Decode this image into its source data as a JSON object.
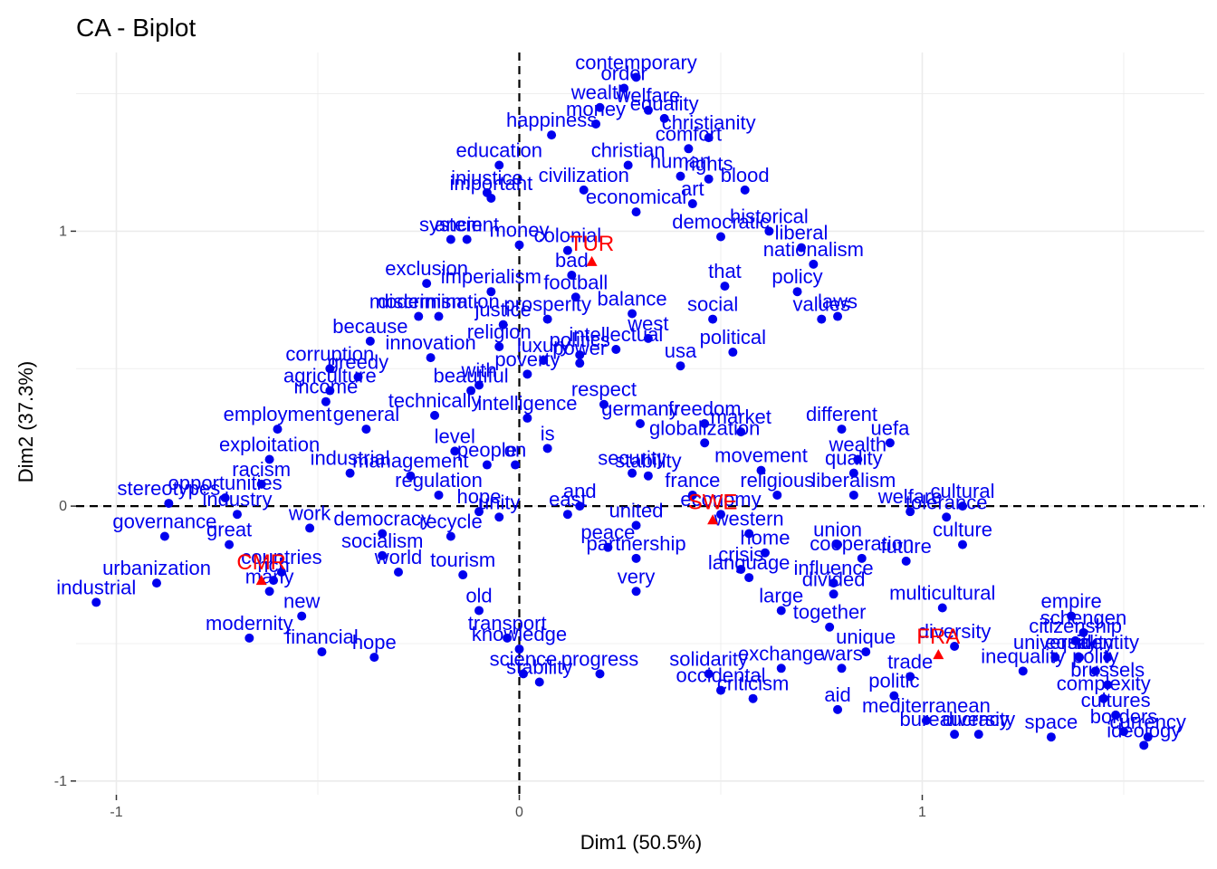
{
  "chart_data": {
    "type": "scatter",
    "title": "CA - Biplot",
    "xlabel": "Dim1 (50.5%)",
    "ylabel": "Dim2 (37.3%)",
    "xlim": [
      -1.1,
      1.7
    ],
    "ylim": [
      -1.05,
      1.65
    ],
    "x_ticks": [
      -1,
      0,
      1
    ],
    "y_ticks": [
      -1,
      0,
      1
    ],
    "grid": true,
    "reference_lines": {
      "x": 0,
      "y": 0,
      "style": "dashed"
    },
    "colors": {
      "rows": "#0000ee",
      "columns": "#ff0000",
      "grid": "#ebebeb"
    },
    "series": [
      {
        "role": "rows",
        "marker": "circle",
        "points": [
          {
            "label": "contemporary",
            "x": 0.29,
            "y": 1.56
          },
          {
            "label": "order",
            "x": 0.26,
            "y": 1.52
          },
          {
            "label": "welfare",
            "x": 0.32,
            "y": 1.44
          },
          {
            "label": "wealth",
            "x": 0.2,
            "y": 1.45
          },
          {
            "label": "equality",
            "x": 0.36,
            "y": 1.41
          },
          {
            "label": "money",
            "x": 0.19,
            "y": 1.39
          },
          {
            "label": "happiness",
            "x": 0.08,
            "y": 1.35
          },
          {
            "label": "christianity",
            "x": 0.47,
            "y": 1.34
          },
          {
            "label": "comfort",
            "x": 0.42,
            "y": 1.3
          },
          {
            "label": "christian",
            "x": 0.27,
            "y": 1.24
          },
          {
            "label": "human",
            "x": 0.4,
            "y": 1.2
          },
          {
            "label": "rights",
            "x": 0.47,
            "y": 1.19
          },
          {
            "label": "blood",
            "x": 0.56,
            "y": 1.15
          },
          {
            "label": "education",
            "x": -0.05,
            "y": 1.24
          },
          {
            "label": "civilization",
            "x": 0.16,
            "y": 1.15
          },
          {
            "label": "injustice",
            "x": -0.08,
            "y": 1.14
          },
          {
            "label": "important",
            "x": -0.07,
            "y": 1.12
          },
          {
            "label": "economical",
            "x": 0.29,
            "y": 1.07
          },
          {
            "label": "art",
            "x": 0.43,
            "y": 1.1
          },
          {
            "label": "historical",
            "x": 0.62,
            "y": 1.0
          },
          {
            "label": "democratic",
            "x": 0.5,
            "y": 0.98
          },
          {
            "label": "liberal",
            "x": 0.7,
            "y": 0.94
          },
          {
            "label": "nationalism",
            "x": 0.73,
            "y": 0.88
          },
          {
            "label": "system",
            "x": -0.17,
            "y": 0.97
          },
          {
            "label": "ancient",
            "x": -0.13,
            "y": 0.97
          },
          {
            "label": "money",
            "x": 0.0,
            "y": 0.95
          },
          {
            "label": "colonial",
            "x": 0.12,
            "y": 0.93
          },
          {
            "label": "bad",
            "x": 0.13,
            "y": 0.84
          },
          {
            "label": "exclusion",
            "x": -0.23,
            "y": 0.81
          },
          {
            "label": "imperialism",
            "x": -0.07,
            "y": 0.78
          },
          {
            "label": "football",
            "x": 0.14,
            "y": 0.76
          },
          {
            "label": "that",
            "x": 0.51,
            "y": 0.8
          },
          {
            "label": "policy",
            "x": 0.69,
            "y": 0.78
          },
          {
            "label": "balance",
            "x": 0.28,
            "y": 0.7
          },
          {
            "label": "discrimination",
            "x": -0.2,
            "y": 0.69
          },
          {
            "label": "modernism",
            "x": -0.25,
            "y": 0.69
          },
          {
            "label": "prosperity",
            "x": 0.07,
            "y": 0.68
          },
          {
            "label": "justice",
            "x": -0.04,
            "y": 0.66
          },
          {
            "label": "social",
            "x": 0.48,
            "y": 0.68
          },
          {
            "label": "values",
            "x": 0.75,
            "y": 0.68
          },
          {
            "label": "laws",
            "x": 0.79,
            "y": 0.69
          },
          {
            "label": "because",
            "x": -0.37,
            "y": 0.6
          },
          {
            "label": "religion",
            "x": -0.05,
            "y": 0.58
          },
          {
            "label": "west",
            "x": 0.32,
            "y": 0.61
          },
          {
            "label": "intellectual",
            "x": 0.24,
            "y": 0.57
          },
          {
            "label": "political",
            "x": 0.53,
            "y": 0.56
          },
          {
            "label": "innovation",
            "x": -0.22,
            "y": 0.54
          },
          {
            "label": "politics",
            "x": 0.15,
            "y": 0.55
          },
          {
            "label": "power",
            "x": 0.15,
            "y": 0.52
          },
          {
            "label": "luxury",
            "x": 0.06,
            "y": 0.53
          },
          {
            "label": "usa",
            "x": 0.4,
            "y": 0.51
          },
          {
            "label": "poverty",
            "x": 0.02,
            "y": 0.48
          },
          {
            "label": "corruption",
            "x": -0.47,
            "y": 0.5
          },
          {
            "label": "greedy",
            "x": -0.4,
            "y": 0.47
          },
          {
            "label": "agriculture",
            "x": -0.47,
            "y": 0.42
          },
          {
            "label": "beautiful",
            "x": -0.12,
            "y": 0.42
          },
          {
            "label": "with",
            "x": -0.1,
            "y": 0.44
          },
          {
            "label": "income",
            "x": -0.48,
            "y": 0.38
          },
          {
            "label": "technically",
            "x": -0.21,
            "y": 0.33
          },
          {
            "label": "intelligence",
            "x": 0.02,
            "y": 0.32
          },
          {
            "label": "respect",
            "x": 0.21,
            "y": 0.37
          },
          {
            "label": "germany",
            "x": 0.3,
            "y": 0.3
          },
          {
            "label": "freedom",
            "x": 0.46,
            "y": 0.3
          },
          {
            "label": "market",
            "x": 0.55,
            "y": 0.27
          },
          {
            "label": "globalization",
            "x": 0.46,
            "y": 0.23
          },
          {
            "label": "different",
            "x": 0.8,
            "y": 0.28
          },
          {
            "label": "uefa",
            "x": 0.92,
            "y": 0.23
          },
          {
            "label": "employment",
            "x": -0.6,
            "y": 0.28
          },
          {
            "label": "general",
            "x": -0.38,
            "y": 0.28
          },
          {
            "label": "level",
            "x": -0.16,
            "y": 0.2
          },
          {
            "label": "people",
            "x": -0.08,
            "y": 0.15
          },
          {
            "label": "on",
            "x": -0.01,
            "y": 0.15
          },
          {
            "label": "is",
            "x": 0.07,
            "y": 0.21
          },
          {
            "label": "exploitation",
            "x": -0.62,
            "y": 0.17
          },
          {
            "label": "industrial",
            "x": -0.42,
            "y": 0.12
          },
          {
            "label": "management",
            "x": -0.27,
            "y": 0.11
          },
          {
            "label": "wealth",
            "x": 0.84,
            "y": 0.17
          },
          {
            "label": "movement",
            "x": 0.6,
            "y": 0.13
          },
          {
            "label": "quality",
            "x": 0.83,
            "y": 0.12
          },
          {
            "label": "security",
            "x": 0.28,
            "y": 0.12
          },
          {
            "label": "stability",
            "x": 0.32,
            "y": 0.11
          },
          {
            "label": "racism",
            "x": -0.64,
            "y": 0.08
          },
          {
            "label": "regulation",
            "x": -0.2,
            "y": 0.04
          },
          {
            "label": "religious",
            "x": 0.64,
            "y": 0.04
          },
          {
            "label": "liberalism",
            "x": 0.83,
            "y": 0.04
          },
          {
            "label": "cultural",
            "x": 1.1,
            "y": 0.0
          },
          {
            "label": "france",
            "x": 0.43,
            "y": 0.04
          },
          {
            "label": "opportunities",
            "x": -0.73,
            "y": 0.03
          },
          {
            "label": "stereotypes",
            "x": -0.87,
            "y": 0.01
          },
          {
            "label": "and",
            "x": 0.15,
            "y": 0.0
          },
          {
            "label": "east",
            "x": 0.12,
            "y": -0.03
          },
          {
            "label": "tolerance",
            "x": 1.06,
            "y": -0.04
          },
          {
            "label": "welfare",
            "x": 0.97,
            "y": -0.02
          },
          {
            "label": "hope",
            "x": -0.1,
            "y": -0.02
          },
          {
            "label": "unity",
            "x": -0.05,
            "y": -0.04
          },
          {
            "label": "economy",
            "x": 0.5,
            "y": -0.03
          },
          {
            "label": "united",
            "x": 0.29,
            "y": -0.07
          },
          {
            "label": "western",
            "x": 0.57,
            "y": -0.1
          },
          {
            "label": "culture",
            "x": 1.1,
            "y": -0.14
          },
          {
            "label": "industry",
            "x": -0.7,
            "y": -0.03
          },
          {
            "label": "work",
            "x": -0.52,
            "y": -0.08
          },
          {
            "label": "democracy",
            "x": -0.34,
            "y": -0.1
          },
          {
            "label": "recycle",
            "x": -0.17,
            "y": -0.11
          },
          {
            "label": "governance",
            "x": -0.88,
            "y": -0.11
          },
          {
            "label": "great",
            "x": -0.72,
            "y": -0.14
          },
          {
            "label": "peace",
            "x": 0.22,
            "y": -0.15
          },
          {
            "label": "partnership",
            "x": 0.29,
            "y": -0.19
          },
          {
            "label": "union",
            "x": 0.79,
            "y": -0.14
          },
          {
            "label": "cooperation",
            "x": 0.85,
            "y": -0.19
          },
          {
            "label": "home",
            "x": 0.61,
            "y": -0.17
          },
          {
            "label": "future",
            "x": 0.96,
            "y": -0.2
          },
          {
            "label": "socialism",
            "x": -0.34,
            "y": -0.18
          },
          {
            "label": "world",
            "x": -0.3,
            "y": -0.24
          },
          {
            "label": "tourism",
            "x": -0.14,
            "y": -0.25
          },
          {
            "label": "crisis",
            "x": 0.55,
            "y": -0.23
          },
          {
            "label": "language",
            "x": 0.57,
            "y": -0.26
          },
          {
            "label": "influence",
            "x": 0.78,
            "y": -0.28
          },
          {
            "label": "divided",
            "x": 0.78,
            "y": -0.32
          },
          {
            "label": "very",
            "x": 0.29,
            "y": -0.31
          },
          {
            "label": "urbanization",
            "x": -0.9,
            "y": -0.28
          },
          {
            "label": "rich",
            "x": -0.61,
            "y": -0.27
          },
          {
            "label": "countries",
            "x": -0.59,
            "y": -0.24
          },
          {
            "label": "many",
            "x": -0.62,
            "y": -0.31
          },
          {
            "label": "new",
            "x": -0.54,
            "y": -0.4
          },
          {
            "label": "large",
            "x": 0.65,
            "y": -0.38
          },
          {
            "label": "multicultural",
            "x": 1.05,
            "y": -0.37
          },
          {
            "label": "empire",
            "x": 1.37,
            "y": -0.4
          },
          {
            "label": "old",
            "x": -0.1,
            "y": -0.38
          },
          {
            "label": "industrial",
            "x": -1.05,
            "y": -0.35
          },
          {
            "label": "together",
            "x": 0.77,
            "y": -0.44
          },
          {
            "label": "schengen",
            "x": 1.4,
            "y": -0.46
          },
          {
            "label": "citizenship",
            "x": 1.38,
            "y": -0.49
          },
          {
            "label": "modernity",
            "x": -0.67,
            "y": -0.48
          },
          {
            "label": "financial",
            "x": -0.49,
            "y": -0.53
          },
          {
            "label": "hope",
            "x": -0.36,
            "y": -0.55
          },
          {
            "label": "transport",
            "x": -0.03,
            "y": -0.48
          },
          {
            "label": "knowledge",
            "x": 0.0,
            "y": -0.52
          },
          {
            "label": "unique",
            "x": 0.86,
            "y": -0.53
          },
          {
            "label": "diversity",
            "x": 1.08,
            "y": -0.51
          },
          {
            "label": "university",
            "x": 1.33,
            "y": -0.55
          },
          {
            "label": "equality",
            "x": 1.39,
            "y": -0.55
          },
          {
            "label": "identity",
            "x": 1.46,
            "y": -0.55
          },
          {
            "label": "trade",
            "x": 0.97,
            "y": -0.62
          },
          {
            "label": "inequality",
            "x": 1.25,
            "y": -0.6
          },
          {
            "label": "polity",
            "x": 1.43,
            "y": -0.6
          },
          {
            "label": "brussels",
            "x": 1.46,
            "y": -0.65
          },
          {
            "label": "progress",
            "x": 0.2,
            "y": -0.61
          },
          {
            "label": "solidarity",
            "x": 0.47,
            "y": -0.61
          },
          {
            "label": "exchange",
            "x": 0.65,
            "y": -0.59
          },
          {
            "label": "wars",
            "x": 0.8,
            "y": -0.59
          },
          {
            "label": "science",
            "x": 0.01,
            "y": -0.61
          },
          {
            "label": "stability",
            "x": 0.05,
            "y": -0.64
          },
          {
            "label": "complexity",
            "x": 1.45,
            "y": -0.7
          },
          {
            "label": "occidental",
            "x": 0.5,
            "y": -0.67
          },
          {
            "label": "criticism",
            "x": 0.58,
            "y": -0.7
          },
          {
            "label": "politic",
            "x": 0.93,
            "y": -0.69
          },
          {
            "label": "aid",
            "x": 0.79,
            "y": -0.74
          },
          {
            "label": "cultures",
            "x": 1.48,
            "y": -0.76
          },
          {
            "label": "mediterranean",
            "x": 1.01,
            "y": -0.78
          },
          {
            "label": "bureaucracy",
            "x": 1.08,
            "y": -0.83
          },
          {
            "label": "diversity",
            "x": 1.14,
            "y": -0.83
          },
          {
            "label": "borders",
            "x": 1.5,
            "y": -0.82
          },
          {
            "label": "space",
            "x": 1.32,
            "y": -0.84
          },
          {
            "label": "currency",
            "x": 1.56,
            "y": -0.84
          },
          {
            "label": "ideology",
            "x": 1.55,
            "y": -0.87
          }
        ]
      },
      {
        "role": "columns",
        "marker": "triangle",
        "points": [
          {
            "label": "TUR",
            "x": 0.18,
            "y": 0.89
          },
          {
            "label": "SWE",
            "x": 0.48,
            "y": -0.05
          },
          {
            "label": "CMR",
            "x": -0.64,
            "y": -0.27
          },
          {
            "label": "FRA",
            "x": 1.04,
            "y": -0.54
          }
        ]
      }
    ]
  }
}
